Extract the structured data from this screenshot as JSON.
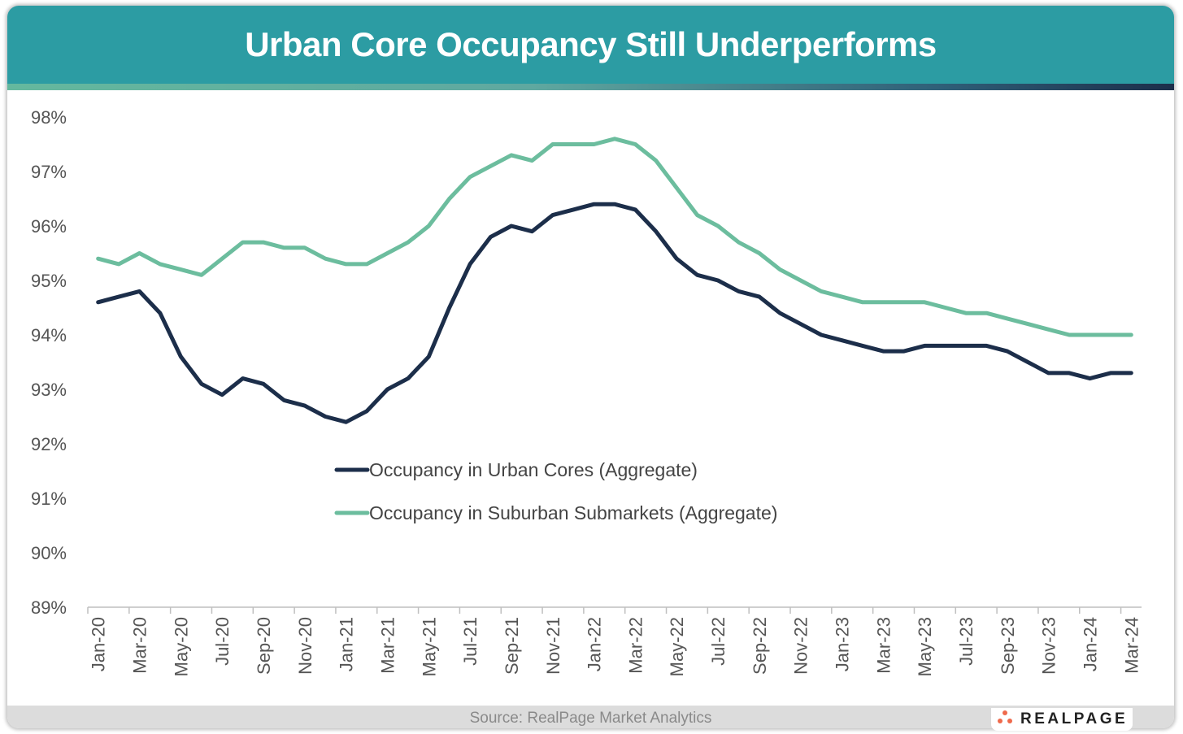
{
  "title": "Urban Core Occupancy Still Underperforms",
  "source": "Source: RealPage Market Analytics",
  "logo_text": "REALPAGE",
  "colors": {
    "header": "#2c9ca3",
    "urban": "#1c2e4a",
    "suburban": "#6cbd9e"
  },
  "chart_data": {
    "type": "line",
    "title": "Urban Core Occupancy Still Underperforms",
    "xlabel": "",
    "ylabel": "",
    "ylim": [
      89,
      98
    ],
    "yticks": [
      "89%",
      "90%",
      "91%",
      "92%",
      "93%",
      "94%",
      "95%",
      "96%",
      "97%",
      "98%"
    ],
    "grid": false,
    "legend_position": "center",
    "x": [
      "Jan-20",
      "Feb-20",
      "Mar-20",
      "Apr-20",
      "May-20",
      "Jun-20",
      "Jul-20",
      "Aug-20",
      "Sep-20",
      "Oct-20",
      "Nov-20",
      "Dec-20",
      "Jan-21",
      "Feb-21",
      "Mar-21",
      "Apr-21",
      "May-21",
      "Jun-21",
      "Jul-21",
      "Aug-21",
      "Sep-21",
      "Oct-21",
      "Nov-21",
      "Dec-21",
      "Jan-22",
      "Feb-22",
      "Mar-22",
      "Apr-22",
      "May-22",
      "Jun-22",
      "Jul-22",
      "Aug-22",
      "Sep-22",
      "Oct-22",
      "Nov-22",
      "Dec-22",
      "Jan-23",
      "Feb-23",
      "Mar-23",
      "Apr-23",
      "May-23",
      "Jun-23",
      "Jul-23",
      "Aug-23",
      "Sep-23",
      "Oct-23",
      "Nov-23",
      "Dec-23",
      "Jan-24",
      "Feb-24",
      "Mar-24"
    ],
    "xtick_labels": [
      "Jan-20",
      "Mar-20",
      "May-20",
      "Jul-20",
      "Sep-20",
      "Nov-20",
      "Jan-21",
      "Mar-21",
      "May-21",
      "Jul-21",
      "Sep-21",
      "Nov-21",
      "Jan-22",
      "Mar-22",
      "May-22",
      "Jul-22",
      "Sep-22",
      "Nov-22",
      "Jan-23",
      "Mar-23",
      "May-23",
      "Jul-23",
      "Sep-23",
      "Nov-23",
      "Jan-24",
      "Mar-24"
    ],
    "series": [
      {
        "name": "Occupancy in Urban Cores (Aggregate)",
        "color": "#1c2e4a",
        "values": [
          94.6,
          94.7,
          94.8,
          94.4,
          93.6,
          93.1,
          92.9,
          93.2,
          93.1,
          92.8,
          92.7,
          92.5,
          92.4,
          92.6,
          93.0,
          93.2,
          93.6,
          94.5,
          95.3,
          95.8,
          96.0,
          95.9,
          96.2,
          96.3,
          96.4,
          96.4,
          96.3,
          95.9,
          95.4,
          95.1,
          95.0,
          94.8,
          94.7,
          94.4,
          94.2,
          94.0,
          93.9,
          93.8,
          93.7,
          93.7,
          93.8,
          93.8,
          93.8,
          93.8,
          93.7,
          93.5,
          93.3,
          93.3,
          93.2,
          93.3,
          93.3
        ]
      },
      {
        "name": "Occupancy in Suburban Submarkets (Aggregate)",
        "color": "#6cbd9e",
        "values": [
          95.4,
          95.3,
          95.5,
          95.3,
          95.2,
          95.1,
          95.4,
          95.7,
          95.7,
          95.6,
          95.6,
          95.4,
          95.3,
          95.3,
          95.5,
          95.7,
          96.0,
          96.5,
          96.9,
          97.1,
          97.3,
          97.2,
          97.5,
          97.5,
          97.5,
          97.6,
          97.5,
          97.2,
          96.7,
          96.2,
          96.0,
          95.7,
          95.5,
          95.2,
          95.0,
          94.8,
          94.7,
          94.6,
          94.6,
          94.6,
          94.6,
          94.5,
          94.4,
          94.4,
          94.3,
          94.2,
          94.1,
          94.0,
          94.0,
          94.0,
          94.0
        ]
      }
    ]
  }
}
